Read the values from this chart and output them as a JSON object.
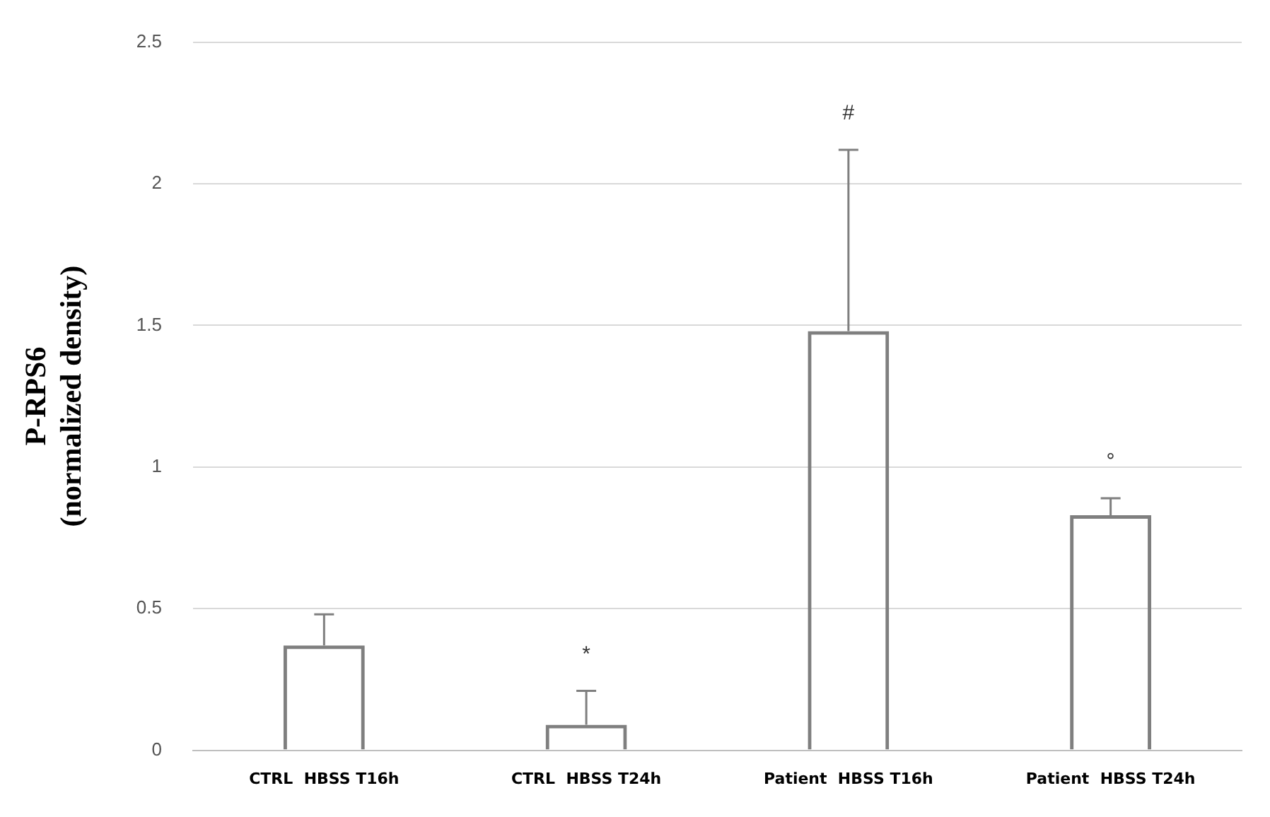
{
  "chart_data": {
    "type": "bar",
    "ylabel": "P-RPS6 (normalized density)",
    "categories": [
      "CTRL  HBSS T16h",
      "CTRL  HBSS T24h",
      "Patient  HBSS T16h",
      "Patient  HBSS T24h"
    ],
    "values": [
      0.37,
      0.09,
      1.48,
      0.83
    ],
    "errors": [
      [
        0.37,
        0.48
      ],
      [
        0.09,
        0.21
      ],
      [
        1.48,
        2.12
      ],
      [
        0.83,
        0.89
      ]
    ],
    "color": "#7f7f7f",
    "ylim": [
      0,
      2.5
    ],
    "yticks": [
      0,
      0.5,
      1,
      1.5,
      2,
      2.5
    ],
    "grid": "y",
    "legend": false,
    "annotations": [
      {
        "text": "*",
        "x": "CTRL  HBSS T24h",
        "y": 0.21
      },
      {
        "text": "#",
        "x": "Patient  HBSS T16h",
        "y": 2.12
      },
      {
        "text": "°",
        "x": "Patient  HBSS T24h",
        "y": 0.89
      }
    ]
  }
}
